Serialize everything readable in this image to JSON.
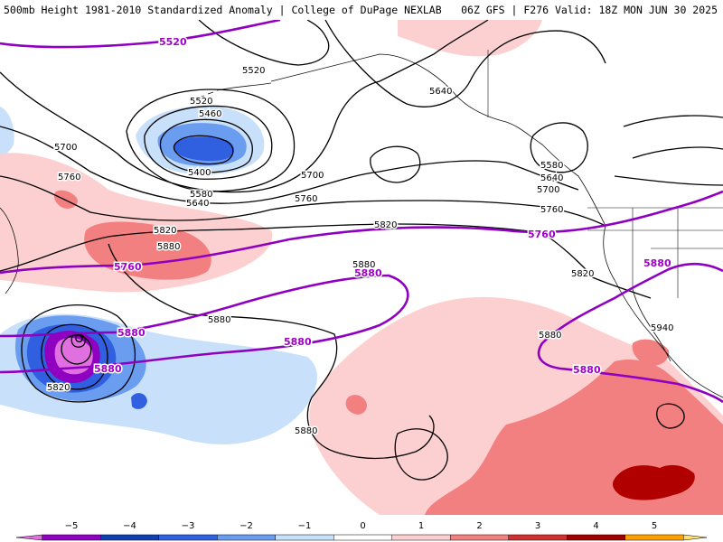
{
  "header": {
    "left": "500mb Height 1981-2010 Standardized Anomaly | College of DuPage NEXLAB",
    "right": "06Z GFS | F276 Valid: 18Z MON JUN 30 2025"
  },
  "colorbar": {
    "ticks": [
      "−5",
      "−4",
      "−3",
      "−2",
      "−1",
      "0",
      "1",
      "2",
      "3",
      "4",
      "5"
    ],
    "colors": [
      "#e070e0",
      "#9000c0",
      "#1040b0",
      "#3060e0",
      "#6a9cf0",
      "#c8e0fa",
      "#ffffff",
      "#fcd0d0",
      "#f38080",
      "#d03030",
      "#a00000",
      "#ffa000",
      "#ffe070"
    ]
  },
  "map": {
    "height_labels": {
      "h5520a": "5520",
      "h5520b": "5520",
      "h5460": "5460",
      "h5400": "5400",
      "h5640a": "5640",
      "h5640b": "5640",
      "h5640c": "5640",
      "h5580a": "5580",
      "h5580b": "5580",
      "h5700a": "5700",
      "h5700b": "5700",
      "h5700c": "5700",
      "h5760a": "5760",
      "h5760b": "5760",
      "h5760c": "5760",
      "h5820a": "5820",
      "h5820b": "5820",
      "h5820c": "5820",
      "h5820d": "5820",
      "h5880a": "5880",
      "h5880b": "5880",
      "h5880c": "5880",
      "h5880d": "5880",
      "h5880e": "5880",
      "h5940": "5940"
    },
    "purple_labels": {
      "p5520": "5520",
      "p5760a": "5760",
      "p5760b": "5760",
      "p5880a": "5880",
      "p5880b": "5880",
      "p5880c": "5880",
      "p5880d": "5880",
      "p5880e": "5880",
      "p5880f": "5880"
    }
  }
}
